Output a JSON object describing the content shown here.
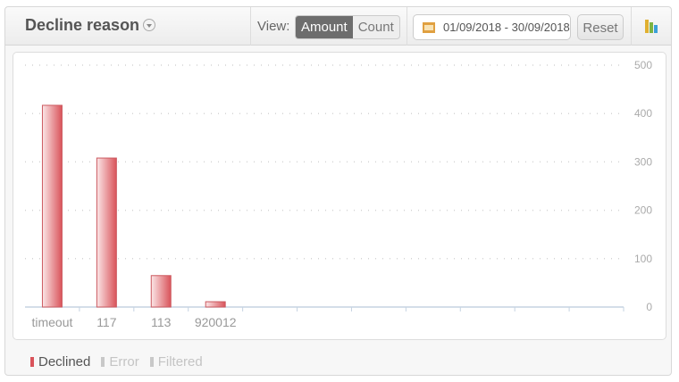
{
  "header": {
    "title": "Decline reason",
    "view_label": "View:",
    "view_options": [
      "Amount",
      "Count"
    ],
    "view_selected": "Amount",
    "date_range": "01/09/2018 - 30/09/2018",
    "reset_label": "Reset"
  },
  "colors": {
    "declined": "#d9535a",
    "error": "#c8c8c8",
    "filtered": "#c8c8c8"
  },
  "chart_data": {
    "type": "bar",
    "categories": [
      "timeout",
      "117",
      "113",
      "920012"
    ],
    "series": [
      {
        "name": "Declined",
        "values": [
          417,
          308,
          65,
          11
        ]
      }
    ],
    "ylim": [
      0,
      500
    ],
    "yticks": [
      0,
      100,
      200,
      300,
      400,
      500
    ],
    "yaxis_position": "right",
    "grid": true,
    "legend": {
      "placement": "bottom-left",
      "entries": [
        {
          "label": "Declined",
          "active": true
        },
        {
          "label": "Error",
          "active": false
        },
        {
          "label": "Filtered",
          "active": false
        }
      ]
    }
  }
}
